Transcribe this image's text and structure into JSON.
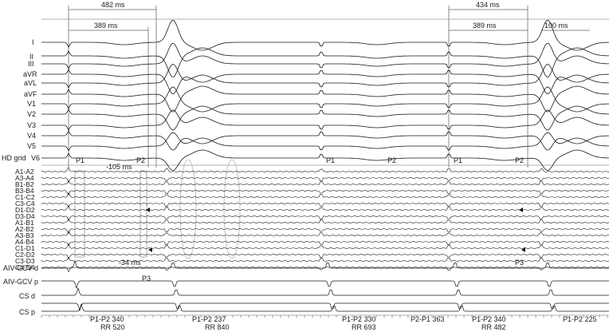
{
  "calipers_top": [
    {
      "label": "482 ms"
    },
    {
      "label": "434 ms"
    }
  ],
  "calipers_second": [
    {
      "label": "389 ms"
    },
    {
      "label": "389 ms"
    }
  ],
  "scale_bar": {
    "label": "100 ms"
  },
  "surface_leads": [
    "I",
    "II",
    "III",
    "aVR",
    "aVL",
    "aVF",
    "V1",
    "V2",
    "V3",
    "V4",
    "V5",
    "V6"
  ],
  "hd_grid_label": "HD grid",
  "hd_channels": [
    "A1-A2",
    "A3-A4",
    "B1-B2",
    "B3-B4",
    "C1-C2",
    "C3-C4",
    "D1-D2",
    "D3-D4",
    "A1-B1",
    "A2-B2",
    "A3-B3",
    "A4-B4",
    "C1-D1",
    "C2-D2",
    "C3-D3",
    "C4-D4"
  ],
  "cs_channels": [
    "AIV-GCV d",
    "AIV-GCV p",
    "CS d",
    "",
    "CS p"
  ],
  "p_markers": [
    "P1",
    "P2",
    "P1",
    "P2",
    "P1",
    "P2"
  ],
  "p3_markers": [
    "P3",
    "P3"
  ],
  "intervals": {
    "neg105": "-105 ms",
    "neg34": "-34 ms"
  },
  "bottom_annotations": {
    "a1_line1": "P1-P2 340",
    "a1_line2": "RR 520",
    "a2_line1": "P1-P2 237",
    "a2_line2": "RR 840",
    "a3_line1": "P1-P2 330",
    "a3_line2": "RR 693",
    "a4_line1": "P2-P1 363",
    "a5_line1": "P1-P2 340",
    "a5_line2": "RR 482",
    "a6_line1": "P1-P2 225"
  }
}
